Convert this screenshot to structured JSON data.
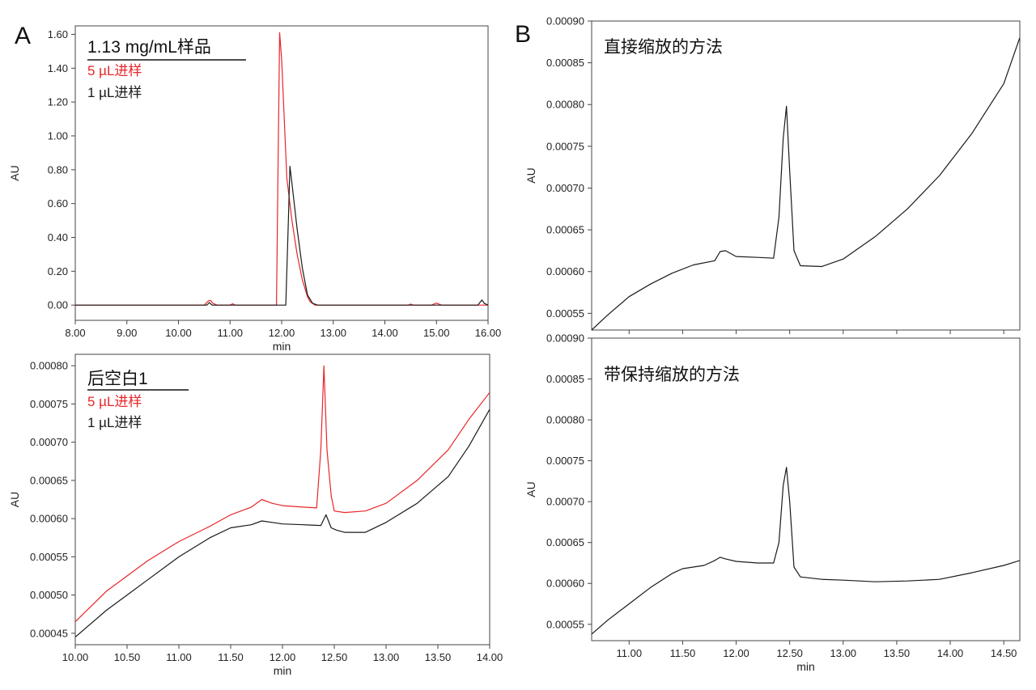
{
  "figure": {
    "panel_labels": {
      "a": "A",
      "b": "B"
    }
  },
  "chart_data": [
    {
      "id": "a1",
      "type": "line",
      "title": "1.13 mg/mL样品",
      "xlabel": "min",
      "ylabel": "AU",
      "xlim": [
        8.0,
        16.0
      ],
      "ylim": [
        -0.09,
        1.65
      ],
      "xticks": [
        8.0,
        9.0,
        10.0,
        11.0,
        12.0,
        13.0,
        14.0,
        15.0,
        16.0
      ],
      "xtick_labels": [
        "8.00",
        "9.00",
        "10.00",
        "11.00",
        "12.00",
        "13.00",
        "14.00",
        "15.00",
        "16.00"
      ],
      "yticks": [
        0.0,
        0.2,
        0.4,
        0.6,
        0.8,
        1.0,
        1.2,
        1.4,
        1.6
      ],
      "ytick_labels": [
        "0.00",
        "0.20",
        "0.40",
        "0.60",
        "0.80",
        "1.00",
        "1.20",
        "1.40",
        "1.60"
      ],
      "legend": [
        "5 µL进样",
        "1 µL进样"
      ],
      "series": [
        {
          "name": "5 µL进样",
          "color": "#e8262a",
          "x": [
            8.0,
            10.5,
            10.58,
            10.62,
            10.67,
            10.75,
            11.0,
            11.05,
            11.1,
            11.9,
            11.93,
            11.96,
            12.0,
            12.05,
            12.1,
            12.2,
            12.3,
            12.4,
            12.5,
            12.55,
            12.65,
            14.45,
            14.5,
            14.55,
            14.9,
            15.0,
            15.1,
            16.0
          ],
          "y": [
            0.0,
            0.0,
            0.025,
            0.028,
            0.01,
            0.0,
            0.0,
            0.008,
            0.0,
            0.0,
            0.8,
            1.61,
            1.45,
            1.1,
            0.75,
            0.5,
            0.3,
            0.15,
            0.05,
            0.02,
            0.0,
            0.0,
            0.006,
            0.0,
            0.0,
            0.012,
            0.0,
            0.0
          ]
        },
        {
          "name": "1 µL进样",
          "color": "#1a1a1a",
          "x": [
            8.0,
            10.55,
            10.6,
            10.65,
            12.08,
            12.13,
            12.16,
            12.2,
            12.3,
            12.4,
            12.5,
            12.6,
            12.7,
            15.8,
            15.88,
            15.93,
            16.0
          ],
          "y": [
            0.0,
            0.0,
            0.015,
            0.0,
            0.0,
            0.5,
            0.82,
            0.72,
            0.45,
            0.22,
            0.06,
            0.01,
            0.0,
            0.0,
            0.03,
            0.01,
            0.0
          ]
        }
      ]
    },
    {
      "id": "a2",
      "type": "line",
      "title": "后空白1",
      "xlabel": "min",
      "ylabel": "AU",
      "xlim": [
        10.0,
        14.0
      ],
      "ylim": [
        0.000435,
        0.000815
      ],
      "xticks": [
        10.0,
        10.5,
        11.0,
        11.5,
        12.0,
        12.5,
        13.0,
        13.5,
        14.0
      ],
      "xtick_labels": [
        "10.00",
        "10.50",
        "11.00",
        "11.50",
        "12.00",
        "12.50",
        "13.00",
        "13.50",
        "14.00"
      ],
      "yticks": [
        0.00045,
        0.0005,
        0.00055,
        0.0006,
        0.00065,
        0.0007,
        0.00075,
        0.0008
      ],
      "ytick_labels": [
        "0.00045",
        "0.00050",
        "0.00055",
        "0.00060",
        "0.00065",
        "0.00070",
        "0.00075",
        "0.00080"
      ],
      "legend": [
        "5 µL进样",
        "1 µL进样"
      ],
      "series": [
        {
          "name": "5 µL进样",
          "color": "#e8262a",
          "x": [
            10.0,
            10.3,
            10.5,
            10.7,
            11.0,
            11.3,
            11.5,
            11.7,
            11.8,
            11.9,
            12.0,
            12.2,
            12.33,
            12.37,
            12.4,
            12.43,
            12.47,
            12.5,
            12.6,
            12.8,
            13.0,
            13.3,
            13.6,
            13.8,
            14.0
          ],
          "y": [
            0.000465,
            0.000505,
            0.000525,
            0.000545,
            0.00057,
            0.00059,
            0.000605,
            0.000615,
            0.000625,
            0.00062,
            0.000617,
            0.000615,
            0.000614,
            0.00069,
            0.0008,
            0.00069,
            0.00063,
            0.00061,
            0.000608,
            0.00061,
            0.00062,
            0.00065,
            0.00069,
            0.00073,
            0.000765
          ]
        },
        {
          "name": "1 µL进样",
          "color": "#1a1a1a",
          "x": [
            10.0,
            10.3,
            10.5,
            10.7,
            11.0,
            11.3,
            11.5,
            11.7,
            11.8,
            11.9,
            12.0,
            12.2,
            12.37,
            12.42,
            12.47,
            12.52,
            12.6,
            12.8,
            13.0,
            13.3,
            13.6,
            13.8,
            14.0
          ],
          "y": [
            0.000445,
            0.00048,
            0.0005,
            0.00052,
            0.00055,
            0.000575,
            0.000588,
            0.000592,
            0.000597,
            0.000595,
            0.000593,
            0.000592,
            0.000591,
            0.000605,
            0.000588,
            0.000585,
            0.000582,
            0.000582,
            0.000595,
            0.00062,
            0.000655,
            0.000695,
            0.000743
          ]
        }
      ]
    },
    {
      "id": "b1",
      "type": "line",
      "title": "直接缩放的方法",
      "xlabel": "",
      "ylabel": "AU",
      "xlim": [
        10.65,
        14.65
      ],
      "ylim": [
        0.00053,
        0.0009
      ],
      "xticks": [
        11.0,
        11.5,
        12.0,
        12.5,
        13.0,
        13.5,
        14.0,
        14.5
      ],
      "xtick_labels": [],
      "yticks": [
        0.00055,
        0.0006,
        0.00065,
        0.0007,
        0.00075,
        0.0008,
        0.00085,
        0.0009
      ],
      "ytick_labels": [
        "0.00055",
        "0.00060",
        "0.00065",
        "0.00070",
        "0.00075",
        "0.00080",
        "0.00085",
        "0.00090"
      ],
      "series": [
        {
          "name": "直接缩放",
          "color": "#1a1a1a",
          "x": [
            10.65,
            10.8,
            11.0,
            11.2,
            11.4,
            11.6,
            11.8,
            11.85,
            11.9,
            12.0,
            12.2,
            12.35,
            12.4,
            12.44,
            12.47,
            12.5,
            12.54,
            12.6,
            12.8,
            13.0,
            13.3,
            13.6,
            13.9,
            14.2,
            14.5,
            14.65
          ],
          "y": [
            0.00053,
            0.000548,
            0.00057,
            0.000585,
            0.000598,
            0.000608,
            0.000613,
            0.000624,
            0.000625,
            0.000618,
            0.000617,
            0.000616,
            0.000665,
            0.00076,
            0.000798,
            0.00072,
            0.000625,
            0.000607,
            0.000606,
            0.000615,
            0.000642,
            0.000675,
            0.000715,
            0.000765,
            0.000825,
            0.00088
          ]
        }
      ]
    },
    {
      "id": "b2",
      "type": "line",
      "title": "带保持缩放的方法",
      "xlabel": "min",
      "ylabel": "AU",
      "xlim": [
        10.65,
        14.65
      ],
      "ylim": [
        0.00053,
        0.0009
      ],
      "xticks": [
        11.0,
        11.5,
        12.0,
        12.5,
        13.0,
        13.5,
        14.0,
        14.5
      ],
      "xtick_labels": [
        "11.00",
        "11.50",
        "12.00",
        "12.50",
        "13.00",
        "13.50",
        "14.00",
        "14.50"
      ],
      "yticks": [
        0.00055,
        0.0006,
        0.00065,
        0.0007,
        0.00075,
        0.0008,
        0.00085,
        0.0009
      ],
      "ytick_labels": [
        "0.00055",
        "0.00060",
        "0.00065",
        "0.00070",
        "0.00075",
        "0.00080",
        "0.00085",
        "0.00090"
      ],
      "series": [
        {
          "name": "带保持缩放",
          "color": "#1a1a1a",
          "x": [
            10.65,
            10.8,
            11.0,
            11.2,
            11.4,
            11.5,
            11.7,
            11.8,
            11.85,
            11.9,
            12.0,
            12.2,
            12.35,
            12.4,
            12.44,
            12.47,
            12.5,
            12.54,
            12.6,
            12.8,
            13.0,
            13.3,
            13.6,
            13.9,
            14.2,
            14.5,
            14.65
          ],
          "y": [
            0.000538,
            0.000555,
            0.000575,
            0.000595,
            0.000612,
            0.000618,
            0.000622,
            0.000628,
            0.000632,
            0.00063,
            0.000627,
            0.000625,
            0.000625,
            0.00065,
            0.00072,
            0.000742,
            0.0007,
            0.00062,
            0.000608,
            0.000605,
            0.000604,
            0.000602,
            0.000603,
            0.000605,
            0.000613,
            0.000622,
            0.000628
          ]
        }
      ]
    }
  ]
}
